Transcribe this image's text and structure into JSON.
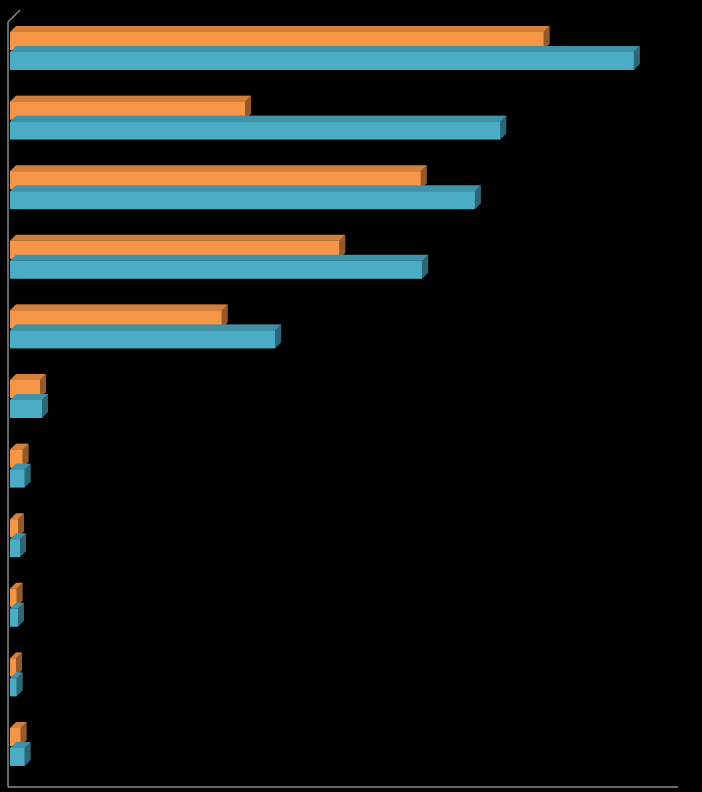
{
  "chart_data": {
    "type": "bar",
    "orientation": "horizontal",
    "three_d": true,
    "categories": [
      null,
      null,
      null,
      null,
      null,
      null,
      null,
      null,
      null,
      null,
      null
    ],
    "series": [
      {
        "color": "#f79646",
        "values": [
          79.9,
          35.2,
          61.5,
          49.3,
          31.7,
          4.5,
          1.9,
          1.2,
          1.0,
          0.9,
          1.6
        ]
      },
      {
        "color": "#4bacc6",
        "values": [
          93.4,
          73.4,
          69.6,
          61.7,
          39.7,
          4.8,
          2.2,
          1.5,
          1.2,
          1.0,
          2.2
        ]
      }
    ],
    "xlim": [
      0,
      100
    ],
    "grid": false
  }
}
